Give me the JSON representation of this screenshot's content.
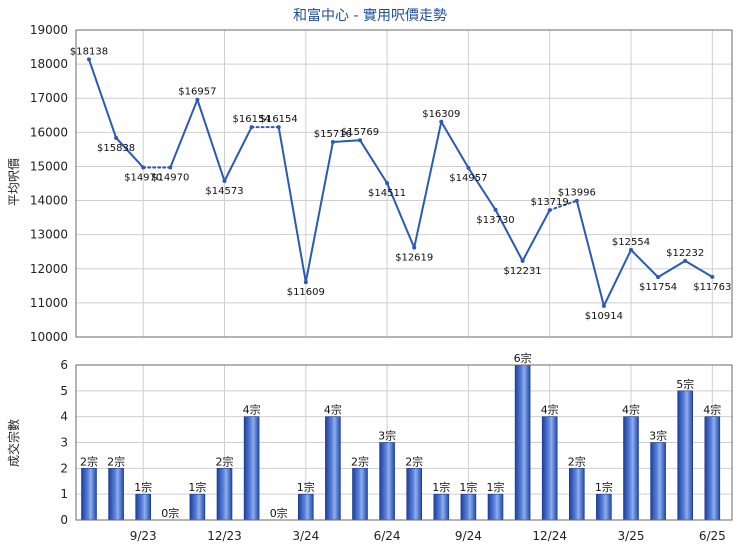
{
  "chart_data": [
    {
      "type": "line",
      "title": "和富中心 - 實用呎價走勢",
      "ylabel": "平均呎價",
      "ylim": [
        10000,
        19000
      ],
      "yticks": [
        10000,
        11000,
        12000,
        13000,
        14000,
        15000,
        16000,
        17000,
        18000,
        19000
      ],
      "value_prefix": "$",
      "color": "#2a5ab5",
      "grid": true,
      "values": [
        18138,
        15838,
        14970,
        14970,
        16957,
        14573,
        16154,
        16154,
        11609,
        15716,
        15769,
        14511,
        12619,
        16309,
        14957,
        13730,
        12231,
        13719,
        13996,
        10914,
        12554,
        11754,
        12232,
        11763
      ],
      "estimated": [
        false,
        false,
        false,
        true,
        false,
        false,
        false,
        true,
        false,
        false,
        false,
        false,
        false,
        false,
        false,
        false,
        false,
        false,
        true,
        false,
        false,
        false,
        false,
        false
      ],
      "labeled": [
        true,
        true,
        true,
        true,
        true,
        true,
        true,
        true,
        true,
        true,
        true,
        true,
        true,
        true,
        true,
        true,
        true,
        true,
        true,
        true,
        true,
        true,
        true,
        true
      ]
    },
    {
      "type": "bar",
      "ylabel": "成交宗數",
      "ylim": [
        0,
        6
      ],
      "yticks": [
        0,
        1,
        2,
        3,
        4,
        5,
        6
      ],
      "value_suffix": "宗",
      "grid": true,
      "values": [
        2,
        2,
        1,
        0,
        1,
        2,
        4,
        0,
        1,
        4,
        2,
        3,
        2,
        1,
        1,
        1,
        6,
        4,
        2,
        1,
        4,
        3,
        5,
        4
      ]
    }
  ],
  "x_axis": {
    "tick_labels": [
      "9/23",
      "12/23",
      "3/24",
      "6/24",
      "9/24",
      "12/24",
      "3/25",
      "6/25"
    ],
    "tick_positions": [
      2,
      5,
      8,
      11,
      14,
      17,
      20,
      23
    ]
  }
}
